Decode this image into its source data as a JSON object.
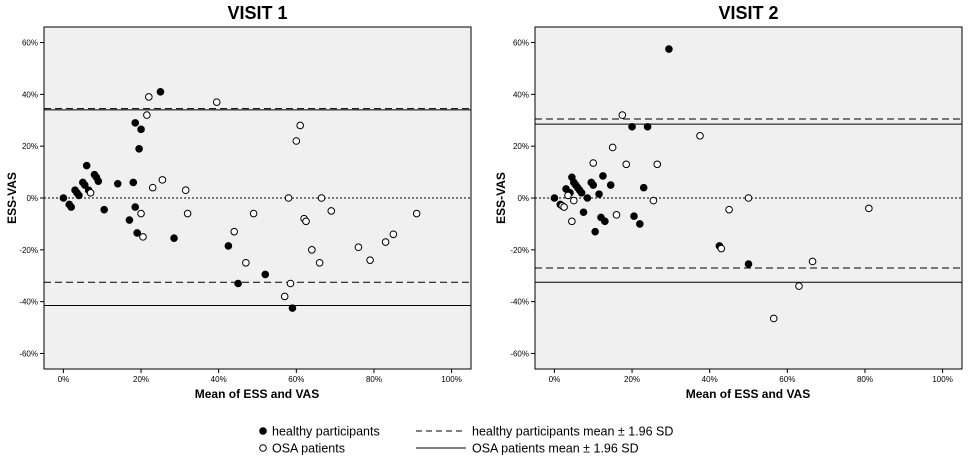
{
  "chart_data": [
    {
      "type": "scatter",
      "title": "VISIT 1",
      "xlabel": "Mean of ESS and VAS",
      "ylabel": "ESS-VAS",
      "xlim": [
        -5,
        105
      ],
      "ylim": [
        -66,
        66
      ],
      "x_ticks": [
        0,
        20,
        40,
        60,
        80,
        100
      ],
      "x_tick_labels": [
        "0%",
        "20%",
        "40%",
        "60%",
        "80%",
        "100%"
      ],
      "y_ticks": [
        60,
        40,
        20,
        0,
        -20,
        -40,
        -60
      ],
      "y_tick_labels": [
        "60%",
        "40%",
        "20%",
        "0%",
        "-20%",
        "-40%",
        "-60%"
      ],
      "reference_lines": [
        {
          "name": "healthy upper",
          "y": 34.5,
          "style": "dashed"
        },
        {
          "name": "OSA upper",
          "y": 34,
          "style": "solid"
        },
        {
          "name": "zero",
          "y": 0,
          "style": "dotted"
        },
        {
          "name": "healthy lower",
          "y": -32.5,
          "style": "dashed"
        },
        {
          "name": "OSA lower",
          "y": -41.5,
          "style": "solid"
        }
      ],
      "series": [
        {
          "name": "healthy participants",
          "marker": "filled",
          "points": [
            [
              0,
              0
            ],
            [
              1.5,
              -2.5
            ],
            [
              2,
              -3.5
            ],
            [
              3,
              3
            ],
            [
              3.5,
              2
            ],
            [
              4,
              1
            ],
            [
              5,
              6
            ],
            [
              5.5,
              5
            ],
            [
              6,
              12.5
            ],
            [
              6.5,
              3
            ],
            [
              8,
              9
            ],
            [
              8.5,
              8
            ],
            [
              9,
              6.5
            ],
            [
              10.5,
              -4.5
            ],
            [
              14,
              5.5
            ],
            [
              17,
              -8.5
            ],
            [
              18,
              6
            ],
            [
              18.5,
              -3.5
            ],
            [
              18.5,
              29
            ],
            [
              19,
              -13.5
            ],
            [
              19.5,
              19
            ],
            [
              20,
              26.5
            ],
            [
              25,
              41
            ],
            [
              28.5,
              -15.5
            ],
            [
              42.5,
              -18.5
            ],
            [
              45,
              -33
            ],
            [
              52,
              -29.5
            ],
            [
              59,
              -42.5
            ]
          ]
        },
        {
          "name": "OSA patients",
          "marker": "open",
          "points": [
            [
              7,
              2
            ],
            [
              20,
              -6
            ],
            [
              20.5,
              -15
            ],
            [
              21.5,
              32
            ],
            [
              22,
              39
            ],
            [
              23,
              4
            ],
            [
              25.5,
              7
            ],
            [
              31.5,
              3
            ],
            [
              32,
              -6
            ],
            [
              39.5,
              37
            ],
            [
              44,
              -13
            ],
            [
              47,
              -25
            ],
            [
              49,
              -6
            ],
            [
              57,
              -38
            ],
            [
              58,
              0
            ],
            [
              58.5,
              -33
            ],
            [
              60,
              22
            ],
            [
              61,
              28
            ],
            [
              62,
              -8
            ],
            [
              62.5,
              -9
            ],
            [
              64,
              -20
            ],
            [
              66,
              -25
            ],
            [
              66.5,
              0
            ],
            [
              69,
              -5
            ],
            [
              76,
              -19
            ],
            [
              79,
              -24
            ],
            [
              83,
              -17
            ],
            [
              85,
              -14
            ],
            [
              91,
              -6
            ]
          ]
        }
      ]
    },
    {
      "type": "scatter",
      "title": "VISIT 2",
      "xlabel": "Mean of ESS and VAS",
      "ylabel": "ESS-VAS",
      "xlim": [
        -5,
        105
      ],
      "ylim": [
        -66,
        66
      ],
      "x_ticks": [
        0,
        20,
        40,
        60,
        80,
        100
      ],
      "x_tick_labels": [
        "0%",
        "20%",
        "40%",
        "60%",
        "80%",
        "100%"
      ],
      "y_ticks": [
        60,
        40,
        20,
        0,
        -20,
        -40,
        -60
      ],
      "y_tick_labels": [
        "60%",
        "40%",
        "20%",
        "0%",
        "-20%",
        "-40%",
        "-60%"
      ],
      "reference_lines": [
        {
          "name": "healthy upper",
          "y": 30.5,
          "style": "dashed"
        },
        {
          "name": "OSA upper",
          "y": 28.5,
          "style": "solid"
        },
        {
          "name": "zero",
          "y": 0,
          "style": "dotted"
        },
        {
          "name": "healthy lower",
          "y": -27,
          "style": "dashed"
        },
        {
          "name": "OSA lower",
          "y": -32.5,
          "style": "solid"
        }
      ],
      "series": [
        {
          "name": "healthy participants",
          "marker": "filled",
          "points": [
            [
              0,
              0
            ],
            [
              1.5,
              -2.5
            ],
            [
              3,
              3.5
            ],
            [
              4,
              2
            ],
            [
              4.5,
              8
            ],
            [
              5,
              6
            ],
            [
              5.5,
              5
            ],
            [
              6,
              4
            ],
            [
              6.5,
              3
            ],
            [
              7,
              2
            ],
            [
              7.5,
              -5.5
            ],
            [
              8.5,
              0
            ],
            [
              9.5,
              6
            ],
            [
              10,
              5
            ],
            [
              10.5,
              -13
            ],
            [
              11.5,
              1.5
            ],
            [
              12,
              -7.5
            ],
            [
              12.5,
              8.5
            ],
            [
              13,
              -9
            ],
            [
              14.5,
              5
            ],
            [
              20,
              27.5
            ],
            [
              20.5,
              -7
            ],
            [
              22,
              -10
            ],
            [
              23,
              4
            ],
            [
              24,
              27.5
            ],
            [
              29.5,
              57.5
            ],
            [
              42.5,
              -18.5
            ],
            [
              50,
              -25.5
            ]
          ]
        },
        {
          "name": "OSA patients",
          "marker": "open",
          "points": [
            [
              2,
              -3
            ],
            [
              2.5,
              -3.5
            ],
            [
              3.5,
              1
            ],
            [
              4.5,
              -9
            ],
            [
              5,
              -1
            ],
            [
              10,
              13.5
            ],
            [
              15,
              19.5
            ],
            [
              16,
              -6.5
            ],
            [
              17.5,
              32
            ],
            [
              18.5,
              13
            ],
            [
              25.5,
              -1
            ],
            [
              26.5,
              13
            ],
            [
              37.5,
              24
            ],
            [
              43,
              -19.5
            ],
            [
              45,
              -4.5
            ],
            [
              50,
              0
            ],
            [
              56.5,
              -46.5
            ],
            [
              63,
              -34
            ],
            [
              66.5,
              -24.5
            ],
            [
              81,
              -4
            ]
          ]
        }
      ]
    }
  ],
  "legend": {
    "healthy_marker_label": "healthy participants",
    "osa_marker_label": "OSA patients",
    "healthy_line_label": "healthy participants mean  ± 1.96 SD",
    "osa_line_label": "OSA patients mean ± 1.96 SD",
    "placement": "bottom-center"
  }
}
